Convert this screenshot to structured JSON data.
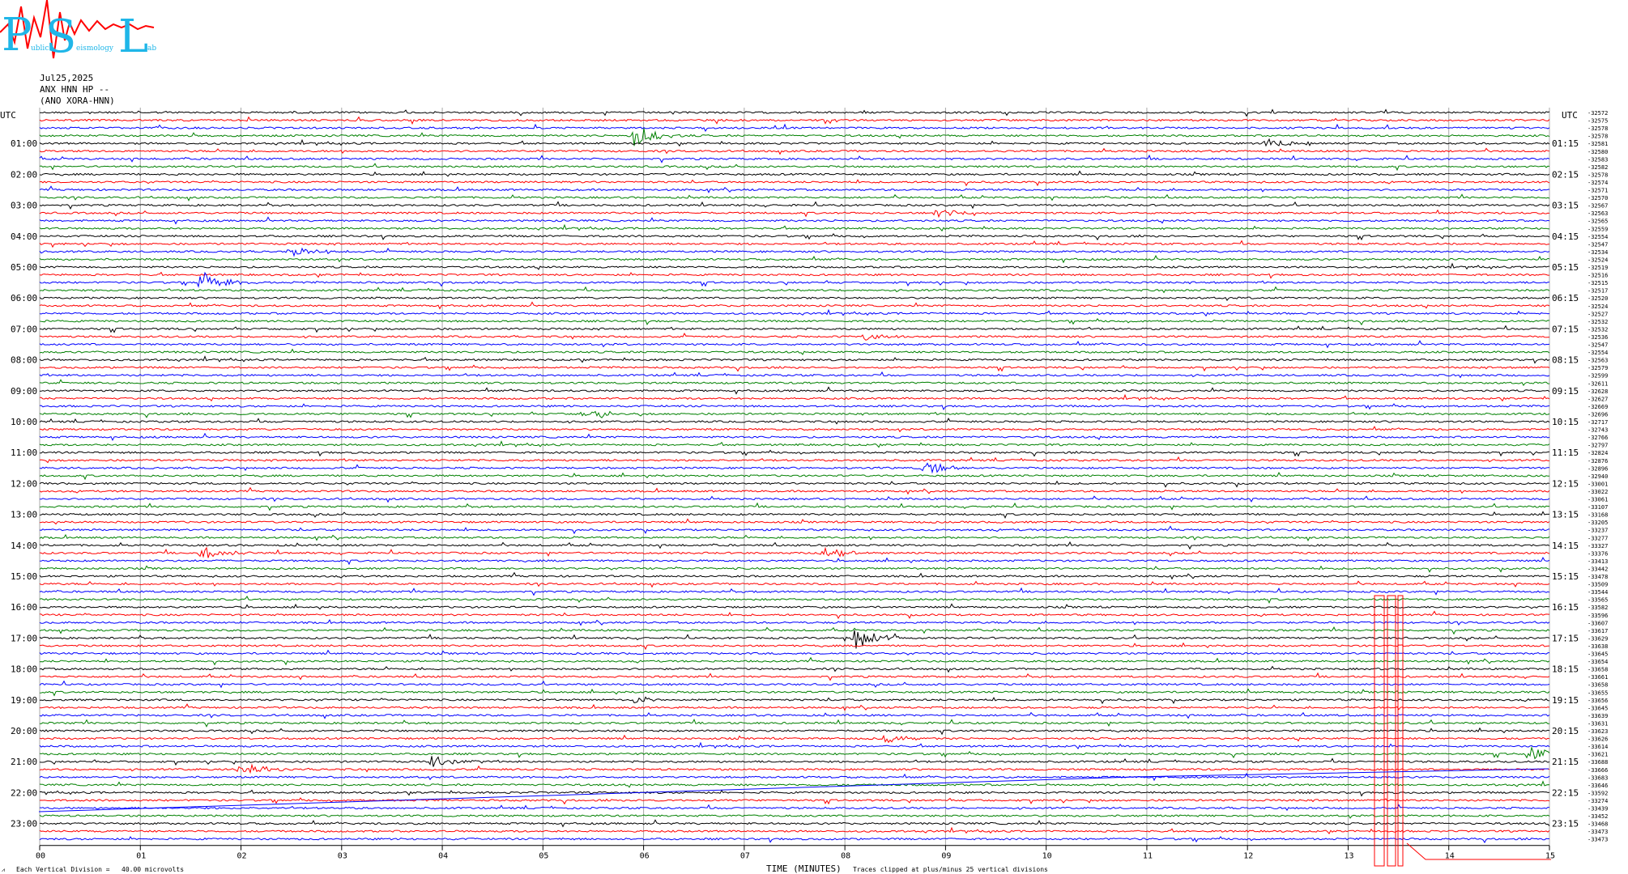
{
  "logo": {
    "letters": [
      "P",
      "S",
      "L"
    ],
    "small_words": [
      "ublic",
      "eismology",
      "ab"
    ]
  },
  "header": {
    "date": "Jul25,2025",
    "station": "ANX HNN HP --",
    "network": "(ANO XORA-HNN)"
  },
  "footer": {
    "left_mark": "⩘",
    "division_label": "Each Vertical Division =",
    "division_value": "40.00 microvolts",
    "axis_title": "TIME (MINUTES)",
    "clip_note": "Traces clipped at plus/minus 25 vertical divisions"
  },
  "chart_data": {
    "type": "helicorder",
    "left_axis_title": "UTC",
    "right_axis_title": "UTC",
    "left_labels": [
      "01:00",
      "02:00",
      "03:00",
      "04:00",
      "05:00",
      "06:00",
      "07:00",
      "08:00",
      "09:00",
      "10:00",
      "11:00",
      "12:00",
      "13:00",
      "14:00",
      "15:00",
      "16:00",
      "17:00",
      "18:00",
      "19:00",
      "20:00",
      "21:00",
      "22:00",
      "23:00"
    ],
    "right_labels": [
      "01:15",
      "02:15",
      "03:15",
      "04:15",
      "05:15",
      "06:15",
      "07:15",
      "08:15",
      "09:15",
      "10:15",
      "11:15",
      "12:15",
      "13:15",
      "14:15",
      "15:15",
      "16:15",
      "17:15",
      "18:15",
      "19:15",
      "20:15",
      "21:15",
      "22:15",
      "23:15"
    ],
    "x_ticks": [
      "00",
      "01",
      "02",
      "03",
      "04",
      "05",
      "06",
      "07",
      "08",
      "09",
      "10",
      "11",
      "12",
      "13",
      "14",
      "15"
    ],
    "x_range": [
      0,
      15
    ],
    "lines_per_hour": 4,
    "trace_colors": [
      "#000000",
      "#ff0000",
      "#0000ff",
      "#008000"
    ],
    "line_values": [
      "-32572",
      "-32575",
      "-32578",
      "-32578",
      "-32581",
      "-32580",
      "-32583",
      "-32582",
      "-32578",
      "-32574",
      "-32571",
      "-32570",
      "-32567",
      "-32563",
      "-32565",
      "-32559",
      "-32554",
      "-32547",
      "-32534",
      "-32524",
      "-32519",
      "-32516",
      "-32515",
      "-32517",
      "-32520",
      "-32524",
      "-32527",
      "-32532",
      "-32532",
      "-32536",
      "-32547",
      "-32554",
      "-32563",
      "-32579",
      "-32599",
      "-32611",
      "-32628",
      "-32627",
      "-32669",
      "-32696",
      "-32717",
      "-32743",
      "-32766",
      "-32797",
      "-32824",
      "-32876",
      "-32896",
      "-32940",
      "-33001",
      "-33022",
      "-33061",
      "-33107",
      "-33168",
      "-33205",
      "-33237",
      "-33277",
      "-33327",
      "-33376",
      "-33413",
      "-33442",
      "-33478",
      "-33509",
      "-33544",
      "-33565",
      "-33582",
      "-33596",
      "-33607",
      "-33617",
      "-33629",
      "-33638",
      "-33645",
      "-33654",
      "-33658",
      "-33661",
      "-33658",
      "-33655",
      "-33656",
      "-33645",
      "-33639",
      "-33631",
      "-33623",
      "-33626",
      "-33614",
      "-33621",
      "-33688",
      "-33666",
      "-33683",
      "-33646",
      "-33592",
      "-33274",
      "-33439",
      "-33452",
      "-33468",
      "-33473",
      "-33473"
    ],
    "events": [
      {
        "hour": 0,
        "line": 3,
        "minute": 5.9,
        "amp": 14
      },
      {
        "hour": 1,
        "line": 0,
        "minute": 12.2,
        "amp": 8
      },
      {
        "hour": 5,
        "line": 2,
        "minute": 1.6,
        "amp": 14
      },
      {
        "hour": 4,
        "line": 2,
        "minute": 2.5,
        "amp": 7
      },
      {
        "hour": 9,
        "line": 3,
        "minute": 5.4,
        "amp": 7
      },
      {
        "hour": 11,
        "line": 2,
        "minute": 8.8,
        "amp": 9
      },
      {
        "hour": 14,
        "line": 1,
        "minute": 1.6,
        "amp": 9
      },
      {
        "hour": 14,
        "line": 1,
        "minute": 7.8,
        "amp": 7
      },
      {
        "hour": 17,
        "line": 0,
        "minute": 8.1,
        "amp": 16
      },
      {
        "hour": 19,
        "line": 0,
        "minute": 5.9,
        "amp": 5
      },
      {
        "hour": 21,
        "line": 0,
        "minute": 3.9,
        "amp": 11
      },
      {
        "hour": 20,
        "line": 3,
        "minute": 14.8,
        "amp": 9
      },
      {
        "hour": 21,
        "line": 1,
        "minute": 2.0,
        "amp": 8
      },
      {
        "hour": 20,
        "line": 1,
        "minute": 8.4,
        "amp": 6
      },
      {
        "hour": 7,
        "line": 1,
        "minute": 8.2,
        "amp": 5
      },
      {
        "hour": 3,
        "line": 1,
        "minute": 8.9,
        "amp": 6
      }
    ]
  }
}
